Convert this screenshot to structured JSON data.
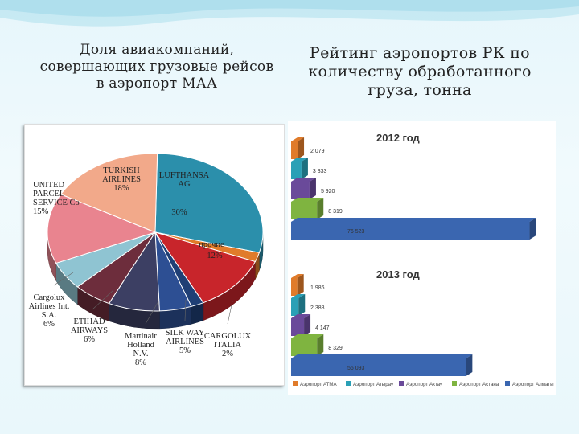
{
  "slide": {
    "title_left": [
      "Доля авиакомпаний,",
      "совершающих грузовые рейсов",
      "в аэропорт МАА"
    ],
    "title_right": [
      "Рейтинг аэропортов РК по",
      "количеству обработанного",
      "груза, тонна"
    ]
  },
  "chart_data": [
    {
      "type": "pie",
      "title": "",
      "slices": [
        {
          "label": [
            "LUFTHANSA",
            "AG"
          ],
          "value": 30,
          "pct_label": "30%",
          "color": "#2b8fab"
        },
        {
          "label": [],
          "value": 2,
          "pct_label": "",
          "color": "#e07b2a"
        },
        {
          "label": [
            "прочие"
          ],
          "value": 12,
          "pct_label": "12%",
          "color": "#c8252b"
        },
        {
          "label": [
            "CARGOLUX",
            "ITALIA"
          ],
          "value": 2,
          "pct_label": "2%",
          "color": "#1f3f75"
        },
        {
          "label": [
            "SILK WAY",
            "AIRLINES"
          ],
          "value": 5,
          "pct_label": "5%",
          "color": "#2d4f93"
        },
        {
          "label": [
            "Martinair",
            "Holland",
            "N.V."
          ],
          "value": 8,
          "pct_label": "8%",
          "color": "#3c3f63"
        },
        {
          "label": [
            "ETIHAD",
            "AIRWAYS"
          ],
          "value": 6,
          "pct_label": "6%",
          "color": "#6d2d3c"
        },
        {
          "label": [
            "Cargolux",
            "Airlines Int.",
            "S.A."
          ],
          "value": 6,
          "pct_label": "6%",
          "color": "#8fc4d2"
        },
        {
          "label": [
            "UNITED",
            "PARCEL",
            "SERVICE Co"
          ],
          "value": 15,
          "pct_label": "15%",
          "color": "#e9848f"
        },
        {
          "label": [
            "TURKISH",
            "AIRLINES"
          ],
          "value": 18,
          "pct_label": "18%",
          "color": "#f2a98a"
        }
      ]
    },
    {
      "type": "bar",
      "title": "2012 год",
      "orientation": "horizontal",
      "categories": [
        "Аэропорт Алматы",
        "Аэропорт Астана",
        "Аэропорт Актау",
        "Аэропорт Атырау",
        "Аэропорт АТМА"
      ],
      "values": [
        76523,
        8319,
        5920,
        3333,
        2079
      ],
      "value_labels": [
        "76 523",
        "8 319",
        "5 920",
        "3 333",
        "2 079"
      ],
      "xlim": [
        0,
        80000
      ]
    },
    {
      "type": "bar",
      "title": "2013 год",
      "orientation": "horizontal",
      "categories": [
        "Аэропорт Алматы",
        "Аэропорт Астана",
        "Аэропорт Актау",
        "Аэропорт Атырау",
        "Аэропорт АТМА"
      ],
      "values": [
        56093,
        8329,
        4147,
        2388,
        1986
      ],
      "value_labels": [
        "56 093",
        "8 329",
        "4 147",
        "2 388",
        "1 986"
      ],
      "xlim": [
        0,
        80000
      ]
    }
  ],
  "legend": {
    "items": [
      {
        "label": "Аэропорт АТМА",
        "color": "#e07b2a"
      },
      {
        "label": "Аэропорт Атырау",
        "color": "#2aa0b6"
      },
      {
        "label": "Аэропорт Актау",
        "color": "#6a4a9a"
      },
      {
        "label": "Аэропорт Астана",
        "color": "#7fb440"
      },
      {
        "label": "Аэропорт Алматы",
        "color": "#3a66b0"
      }
    ]
  },
  "colors": {
    "bars": [
      "#3a66b0",
      "#7fb440",
      "#6a4a9a",
      "#2aa0b6",
      "#e07b2a"
    ]
  }
}
